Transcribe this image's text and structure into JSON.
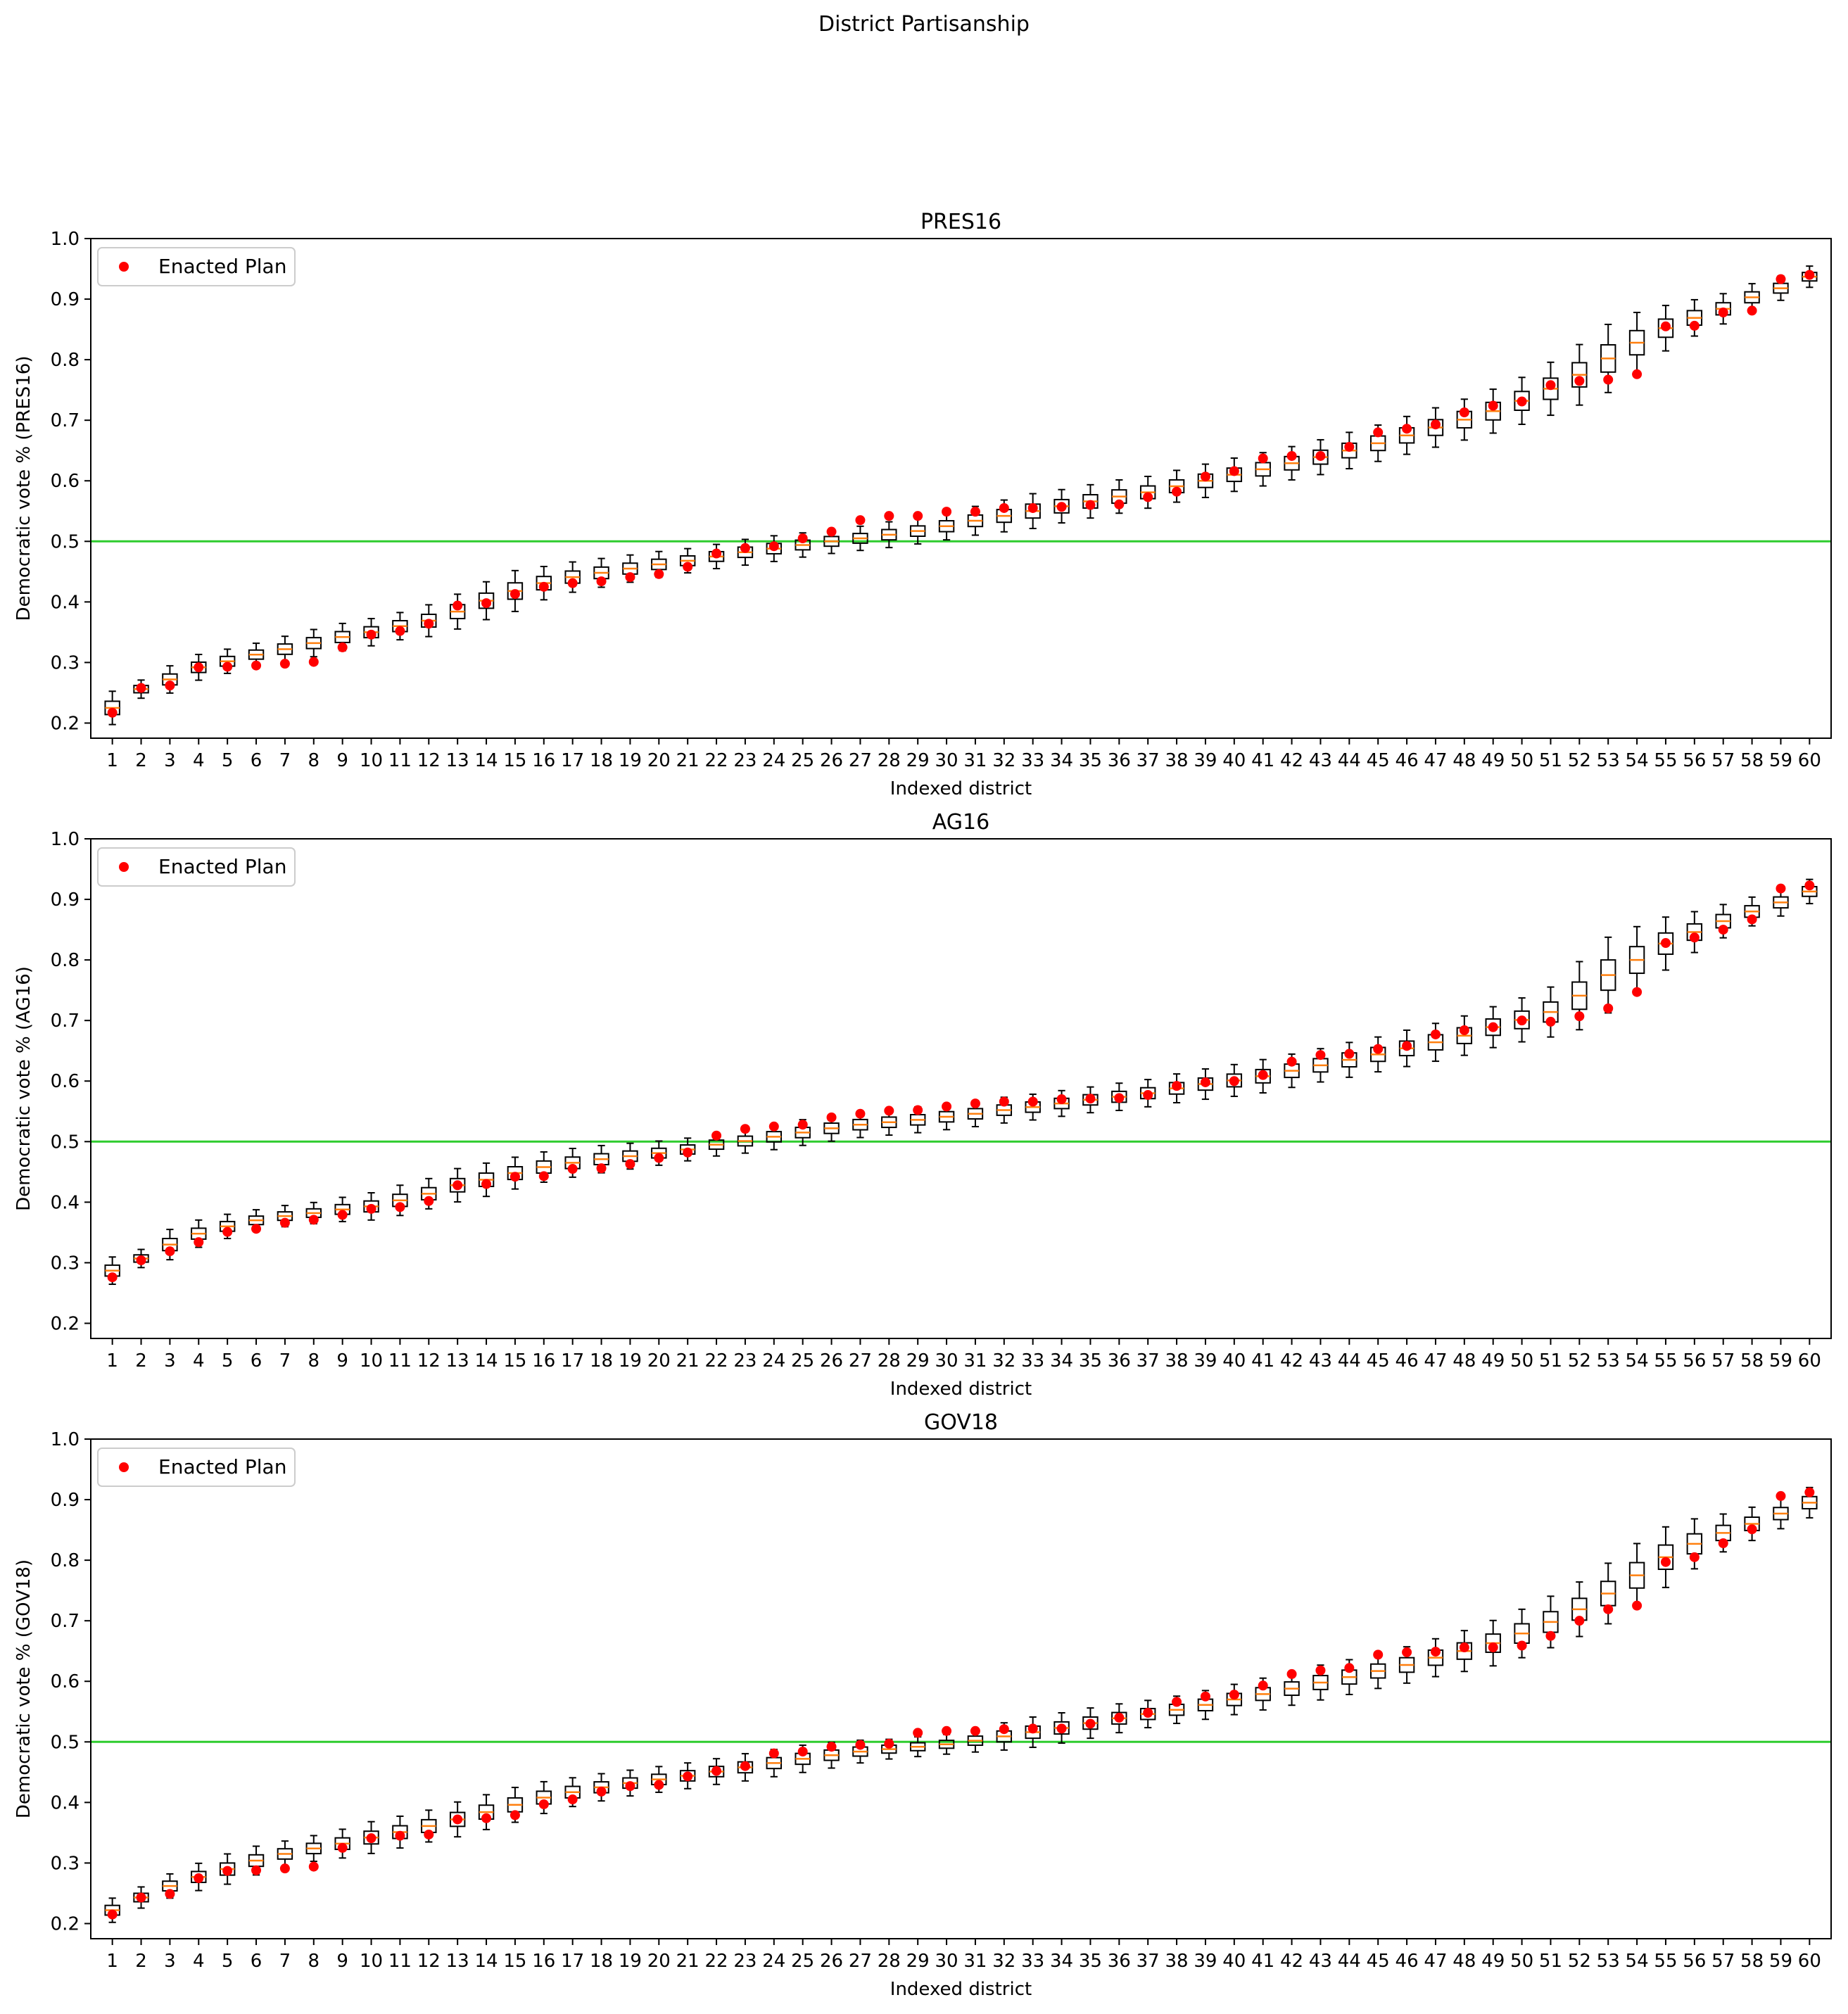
{
  "figure": {
    "suptitle": "District Partisanship"
  },
  "colors": {
    "box_edge": "#000000",
    "median": "#ff7f0e",
    "enacted": "#ff0000",
    "threshold": "#2ecc2e",
    "axes": "#000000",
    "background": "#ffffff"
  },
  "chart_data": [
    {
      "type": "box",
      "title": "PRES16",
      "xlabel": "Indexed district",
      "ylabel": "Democratic vote % (PRES16)",
      "ylim": [
        0.175,
        1.0
      ],
      "yticks": [
        0.2,
        0.3,
        0.4,
        0.5,
        0.6,
        0.7,
        0.8,
        0.9,
        1.0
      ],
      "x": [
        1,
        2,
        3,
        4,
        5,
        6,
        7,
        8,
        9,
        10,
        11,
        12,
        13,
        14,
        15,
        16,
        17,
        18,
        19,
        20,
        21,
        22,
        23,
        24,
        25,
        26,
        27,
        28,
        29,
        30,
        31,
        32,
        33,
        34,
        35,
        36,
        37,
        38,
        39,
        40,
        41,
        42,
        43,
        44,
        45,
        46,
        47,
        48,
        49,
        50,
        51,
        52,
        53,
        54,
        55,
        56,
        57,
        58,
        59,
        60
      ],
      "legend": {
        "label": "Enacted Plan",
        "loc": "upper left"
      },
      "threshold": 0.5,
      "median": [
        0.225,
        0.256,
        0.272,
        0.292,
        0.302,
        0.313,
        0.322,
        0.332,
        0.342,
        0.35,
        0.36,
        0.369,
        0.384,
        0.402,
        0.418,
        0.431,
        0.441,
        0.448,
        0.455,
        0.462,
        0.468,
        0.475,
        0.482,
        0.488,
        0.494,
        0.5,
        0.505,
        0.511,
        0.517,
        0.525,
        0.534,
        0.542,
        0.55,
        0.558,
        0.566,
        0.574,
        0.581,
        0.591,
        0.6,
        0.61,
        0.619,
        0.629,
        0.639,
        0.65,
        0.662,
        0.675,
        0.688,
        0.701,
        0.715,
        0.732,
        0.752,
        0.775,
        0.802,
        0.828,
        0.852,
        0.869,
        0.884,
        0.903,
        0.918,
        0.937
      ],
      "enacted": [
        0.217,
        0.258,
        0.262,
        0.292,
        0.293,
        0.295,
        0.298,
        0.301,
        0.325,
        0.346,
        0.352,
        0.364,
        0.394,
        0.398,
        0.413,
        0.425,
        0.431,
        0.434,
        0.441,
        0.446,
        0.458,
        0.48,
        0.489,
        0.492,
        0.505,
        0.516,
        0.535,
        0.542,
        0.542,
        0.549,
        0.549,
        0.555,
        0.555,
        0.557,
        0.56,
        0.561,
        0.573,
        0.582,
        0.607,
        0.616,
        0.637,
        0.641,
        0.641,
        0.656,
        0.68,
        0.686,
        0.693,
        0.713,
        0.724,
        0.731,
        0.758,
        0.765,
        0.767,
        0.776,
        0.855,
        0.856,
        0.878,
        0.881,
        0.933,
        0.94
      ],
      "spread": [
        0.022,
        0.012,
        0.018,
        0.017,
        0.016,
        0.015,
        0.017,
        0.018,
        0.018,
        0.018,
        0.018,
        0.021,
        0.023,
        0.025,
        0.027,
        0.022,
        0.02,
        0.019,
        0.018,
        0.017,
        0.016,
        0.016,
        0.017,
        0.017,
        0.016,
        0.016,
        0.016,
        0.017,
        0.017,
        0.018,
        0.019,
        0.021,
        0.023,
        0.022,
        0.022,
        0.022,
        0.021,
        0.021,
        0.022,
        0.022,
        0.022,
        0.022,
        0.023,
        0.024,
        0.024,
        0.025,
        0.026,
        0.027,
        0.029,
        0.031,
        0.035,
        0.04,
        0.045,
        0.04,
        0.03,
        0.024,
        0.02,
        0.018,
        0.016,
        0.014
      ]
    },
    {
      "type": "box",
      "title": "AG16",
      "xlabel": "Indexed district",
      "ylabel": "Democratic vote % (AG16)",
      "ylim": [
        0.175,
        1.0
      ],
      "yticks": [
        0.2,
        0.3,
        0.4,
        0.5,
        0.6,
        0.7,
        0.8,
        0.9,
        1.0
      ],
      "x": [
        1,
        2,
        3,
        4,
        5,
        6,
        7,
        8,
        9,
        10,
        11,
        12,
        13,
        14,
        15,
        16,
        17,
        18,
        19,
        20,
        21,
        22,
        23,
        24,
        25,
        26,
        27,
        28,
        29,
        30,
        31,
        32,
        33,
        34,
        35,
        36,
        37,
        38,
        39,
        40,
        41,
        42,
        43,
        44,
        45,
        46,
        47,
        48,
        49,
        50,
        51,
        52,
        53,
        54,
        55,
        56,
        57,
        58,
        59,
        60
      ],
      "legend": {
        "label": "Enacted Plan",
        "loc": "upper left"
      },
      "threshold": 0.5,
      "median": [
        0.287,
        0.307,
        0.33,
        0.348,
        0.36,
        0.37,
        0.377,
        0.382,
        0.388,
        0.393,
        0.403,
        0.414,
        0.428,
        0.437,
        0.448,
        0.458,
        0.465,
        0.471,
        0.476,
        0.481,
        0.487,
        0.495,
        0.501,
        0.508,
        0.515,
        0.522,
        0.528,
        0.532,
        0.536,
        0.541,
        0.546,
        0.552,
        0.557,
        0.563,
        0.569,
        0.574,
        0.58,
        0.588,
        0.595,
        0.601,
        0.608,
        0.617,
        0.626,
        0.635,
        0.644,
        0.654,
        0.664,
        0.675,
        0.689,
        0.701,
        0.714,
        0.741,
        0.775,
        0.8,
        0.827,
        0.846,
        0.864,
        0.88,
        0.895,
        0.913
      ],
      "enacted": [
        0.276,
        0.304,
        0.319,
        0.334,
        0.351,
        0.356,
        0.366,
        0.371,
        0.379,
        0.389,
        0.392,
        0.402,
        0.428,
        0.43,
        0.442,
        0.443,
        0.455,
        0.456,
        0.463,
        0.473,
        0.482,
        0.51,
        0.521,
        0.525,
        0.528,
        0.54,
        0.546,
        0.551,
        0.552,
        0.558,
        0.563,
        0.566,
        0.566,
        0.57,
        0.571,
        0.572,
        0.577,
        0.592,
        0.598,
        0.6,
        0.61,
        0.632,
        0.643,
        0.645,
        0.653,
        0.658,
        0.677,
        0.684,
        0.689,
        0.7,
        0.698,
        0.707,
        0.72,
        0.747,
        0.828,
        0.837,
        0.85,
        0.867,
        0.918,
        0.923
      ],
      "spread": [
        0.018,
        0.012,
        0.02,
        0.018,
        0.016,
        0.014,
        0.014,
        0.014,
        0.016,
        0.018,
        0.02,
        0.02,
        0.022,
        0.022,
        0.021,
        0.02,
        0.019,
        0.018,
        0.017,
        0.016,
        0.015,
        0.015,
        0.016,
        0.017,
        0.017,
        0.017,
        0.017,
        0.017,
        0.017,
        0.017,
        0.017,
        0.017,
        0.017,
        0.017,
        0.017,
        0.018,
        0.018,
        0.019,
        0.02,
        0.021,
        0.022,
        0.022,
        0.022,
        0.023,
        0.023,
        0.024,
        0.025,
        0.026,
        0.027,
        0.029,
        0.033,
        0.045,
        0.05,
        0.044,
        0.035,
        0.027,
        0.022,
        0.019,
        0.018,
        0.016
      ]
    },
    {
      "type": "box",
      "title": "GOV18",
      "xlabel": "Indexed district",
      "ylabel": "Democratic vote % (GOV18)",
      "ylim": [
        0.175,
        1.0
      ],
      "yticks": [
        0.2,
        0.3,
        0.4,
        0.5,
        0.6,
        0.7,
        0.8,
        0.9,
        1.0
      ],
      "x": [
        1,
        2,
        3,
        4,
        5,
        6,
        7,
        8,
        9,
        10,
        11,
        12,
        13,
        14,
        15,
        16,
        17,
        18,
        19,
        20,
        21,
        22,
        23,
        24,
        25,
        26,
        27,
        28,
        29,
        30,
        31,
        32,
        33,
        34,
        35,
        36,
        37,
        38,
        39,
        40,
        41,
        42,
        43,
        44,
        45,
        46,
        47,
        48,
        49,
        50,
        51,
        52,
        53,
        54,
        55,
        56,
        57,
        58,
        59,
        60
      ],
      "legend": {
        "label": "Enacted Plan",
        "loc": "upper left"
      },
      "threshold": 0.5,
      "median": [
        0.222,
        0.243,
        0.262,
        0.277,
        0.29,
        0.304,
        0.315,
        0.324,
        0.332,
        0.342,
        0.351,
        0.361,
        0.372,
        0.384,
        0.396,
        0.408,
        0.417,
        0.425,
        0.432,
        0.438,
        0.444,
        0.451,
        0.458,
        0.465,
        0.472,
        0.478,
        0.484,
        0.488,
        0.492,
        0.496,
        0.502,
        0.509,
        0.516,
        0.523,
        0.531,
        0.539,
        0.546,
        0.553,
        0.561,
        0.57,
        0.579,
        0.588,
        0.598,
        0.607,
        0.617,
        0.627,
        0.639,
        0.65,
        0.663,
        0.679,
        0.698,
        0.719,
        0.745,
        0.775,
        0.805,
        0.827,
        0.845,
        0.86,
        0.877,
        0.895
      ],
      "enacted": [
        0.215,
        0.243,
        0.249,
        0.275,
        0.287,
        0.288,
        0.291,
        0.294,
        0.325,
        0.341,
        0.345,
        0.347,
        0.372,
        0.374,
        0.379,
        0.397,
        0.405,
        0.418,
        0.427,
        0.429,
        0.443,
        0.452,
        0.46,
        0.481,
        0.484,
        0.492,
        0.495,
        0.497,
        0.515,
        0.518,
        0.518,
        0.521,
        0.522,
        0.522,
        0.53,
        0.54,
        0.548,
        0.566,
        0.575,
        0.578,
        0.593,
        0.612,
        0.618,
        0.622,
        0.644,
        0.648,
        0.649,
        0.656,
        0.656,
        0.659,
        0.675,
        0.7,
        0.719,
        0.725,
        0.797,
        0.805,
        0.828,
        0.851,
        0.906,
        0.912
      ],
      "spread": [
        0.016,
        0.014,
        0.016,
        0.018,
        0.02,
        0.019,
        0.017,
        0.017,
        0.019,
        0.021,
        0.021,
        0.021,
        0.023,
        0.023,
        0.023,
        0.021,
        0.019,
        0.018,
        0.017,
        0.017,
        0.017,
        0.017,
        0.018,
        0.018,
        0.018,
        0.017,
        0.015,
        0.013,
        0.013,
        0.013,
        0.015,
        0.018,
        0.02,
        0.02,
        0.02,
        0.019,
        0.018,
        0.018,
        0.019,
        0.02,
        0.021,
        0.022,
        0.023,
        0.023,
        0.023,
        0.024,
        0.025,
        0.027,
        0.03,
        0.032,
        0.034,
        0.036,
        0.04,
        0.042,
        0.04,
        0.033,
        0.025,
        0.022,
        0.02,
        0.02
      ]
    }
  ]
}
